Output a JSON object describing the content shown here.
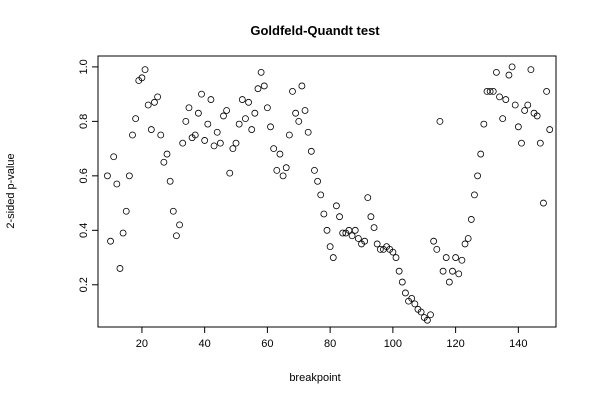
{
  "chart_data": {
    "type": "scatter",
    "title": "Goldfeld-Quandt test",
    "xlabel": "breakpoint",
    "ylabel": "2-sided p-value",
    "xlim": [
      6,
      152
    ],
    "ylim": [
      0.045,
      1.04
    ],
    "xticks": [
      20,
      40,
      60,
      80,
      100,
      120,
      140
    ],
    "yticks": [
      0.2,
      0.4,
      0.6,
      0.8,
      1.0
    ],
    "ytick_labels": [
      "0.2",
      "0.4",
      "0.6",
      "0.8",
      "1.0"
    ],
    "grid": false,
    "marker": "open-circle",
    "x": [
      9,
      10,
      11,
      12,
      13,
      14,
      15,
      16,
      17,
      18,
      19,
      20,
      21,
      22,
      23,
      24,
      25,
      26,
      27,
      28,
      29,
      30,
      31,
      32,
      33,
      34,
      35,
      36,
      37,
      38,
      39,
      40,
      41,
      42,
      43,
      44,
      45,
      46,
      47,
      48,
      49,
      50,
      51,
      52,
      53,
      54,
      55,
      56,
      57,
      58,
      59,
      60,
      61,
      62,
      63,
      64,
      65,
      66,
      67,
      68,
      69,
      70,
      71,
      72,
      73,
      74,
      75,
      76,
      77,
      78,
      79,
      80,
      81,
      82,
      83,
      84,
      85,
      86,
      87,
      88,
      89,
      90,
      91,
      92,
      93,
      94,
      95,
      96,
      97,
      98,
      99,
      100,
      101,
      102,
      103,
      104,
      105,
      106,
      107,
      108,
      109,
      110,
      111,
      112,
      113,
      114,
      115,
      116,
      117,
      118,
      119,
      120,
      121,
      122,
      123,
      124,
      125,
      126,
      127,
      128,
      129,
      130,
      131,
      132,
      133,
      134,
      135,
      136,
      137,
      138,
      139,
      140,
      141,
      142,
      143,
      144,
      145,
      146,
      147,
      148,
      149,
      150
    ],
    "y": [
      0.6,
      0.36,
      0.67,
      0.57,
      0.26,
      0.39,
      0.47,
      0.6,
      0.75,
      0.81,
      0.95,
      0.96,
      0.99,
      0.86,
      0.77,
      0.87,
      0.89,
      0.75,
      0.65,
      0.68,
      0.58,
      0.47,
      0.38,
      0.42,
      0.72,
      0.8,
      0.85,
      0.74,
      0.75,
      0.83,
      0.9,
      0.73,
      0.79,
      0.88,
      0.71,
      0.76,
      0.72,
      0.82,
      0.84,
      0.61,
      0.7,
      0.72,
      0.79,
      0.88,
      0.81,
      0.87,
      0.77,
      0.83,
      0.92,
      0.98,
      0.93,
      0.85,
      0.78,
      0.7,
      0.62,
      0.68,
      0.6,
      0.63,
      0.75,
      0.91,
      0.83,
      0.8,
      0.93,
      0.84,
      0.76,
      0.69,
      0.62,
      0.58,
      0.53,
      0.46,
      0.4,
      0.34,
      0.3,
      0.49,
      0.45,
      0.39,
      0.39,
      0.4,
      0.38,
      0.4,
      0.37,
      0.35,
      0.36,
      0.52,
      0.45,
      0.41,
      0.35,
      0.33,
      0.33,
      0.34,
      0.33,
      0.32,
      0.3,
      0.25,
      0.21,
      0.17,
      0.14,
      0.15,
      0.13,
      0.11,
      0.1,
      0.08,
      0.07,
      0.09,
      0.36,
      0.33,
      0.8,
      0.25,
      0.3,
      0.21,
      0.25,
      0.3,
      0.24,
      0.29,
      0.35,
      0.37,
      0.44,
      0.53,
      0.6,
      0.68,
      0.79,
      0.91,
      0.91,
      0.91,
      0.98,
      0.89,
      0.81,
      0.88,
      0.97,
      1.0,
      0.86,
      0.78,
      0.72,
      0.84,
      0.86,
      0.99,
      0.83,
      0.82,
      0.72,
      0.5,
      0.91,
      0.77
    ]
  }
}
